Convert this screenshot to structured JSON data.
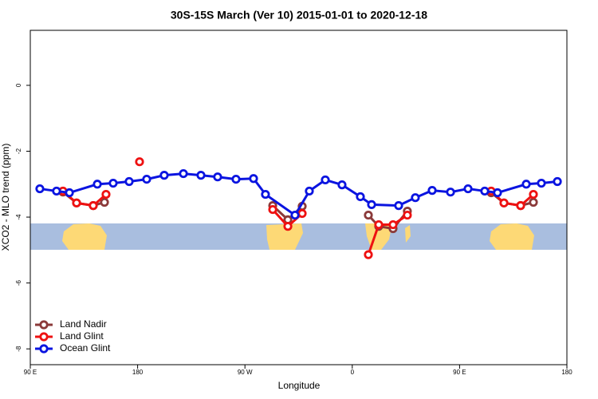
{
  "chart_data": {
    "type": "line",
    "title": "30S-15S March (Ver 10)   2015-01-01 to 2020-12-18",
    "x_label": "Longitude",
    "y_label": "XCO2 - MLO trend (ppm)",
    "xlim": [
      90,
      540
    ],
    "ylim": [
      -8.48,
      1.67
    ],
    "xticks": [
      {
        "value": 90,
        "label": "90 E"
      },
      180,
      {
        "value": 270,
        "label": "90 W"
      },
      {
        "value": 360,
        "label": "0"
      },
      {
        "value": 450,
        "label": "90 E"
      },
      {
        "value": 540,
        "label": "180"
      }
    ],
    "yticks": [
      0,
      -2,
      -4,
      -6,
      -8
    ],
    "legend": "bottom-left",
    "series": [
      {
        "name": "Land Nadir",
        "color": "#8b3a3a",
        "x": [
          117.4,
          128.8,
          142.8,
          152.2,
          null,
          293.3,
          306,
          318,
          null,
          373.5,
          382.2,
          394.2,
          406.2,
          null,
          476.5,
          487.2,
          501.2,
          511.9
        ],
        "values": [
          -3.24,
          -3.57,
          -3.65,
          -3.55,
          null,
          -3.65,
          -4.08,
          -3.67,
          null,
          -3.94,
          -4.28,
          -4.35,
          -3.82,
          null,
          -3.26,
          -3.57,
          -3.65,
          -3.55
        ]
      },
      {
        "name": "Land Glint",
        "color": "#ee1111",
        "x": [
          117.4,
          128.8,
          142.8,
          153.5,
          null,
          181.6,
          null,
          293.3,
          306,
          318,
          null,
          373.5,
          382.2,
          394.2,
          406.2,
          null,
          476.5,
          487.2,
          501.2,
          511.9
        ],
        "values": [
          -3.21,
          -3.57,
          -3.65,
          -3.31,
          null,
          -2.32,
          null,
          -3.77,
          -4.28,
          -3.89,
          null,
          -5.14,
          -4.23,
          -4.23,
          -3.94,
          null,
          -3.21,
          -3.57,
          -3.65,
          -3.31
        ]
      },
      {
        "name": "Ocean Glint",
        "color": "#0a14e0",
        "x": [
          98,
          112,
          122.8,
          146.2,
          159.5,
          172.9,
          187.6,
          202.3,
          218.4,
          233.1,
          247.1,
          262.5,
          277.2,
          287.2,
          312,
          324,
          337.4,
          351.4,
          366.8,
          376.2,
          398.9,
          412.9,
          427,
          442.4,
          457.1,
          471.1,
          481.8,
          505.9,
          518.6,
          532
        ],
        "values": [
          -3.14,
          -3.21,
          -3.26,
          -3.0,
          -2.97,
          -2.92,
          -2.85,
          -2.73,
          -2.68,
          -2.73,
          -2.78,
          -2.85,
          -2.83,
          -3.31,
          -3.94,
          -3.21,
          -2.87,
          -3.02,
          -3.38,
          -3.62,
          -3.65,
          -3.41,
          -3.19,
          -3.24,
          -3.14,
          -3.21,
          -3.26,
          -3.0,
          -2.97,
          -2.92
        ]
      }
    ]
  }
}
